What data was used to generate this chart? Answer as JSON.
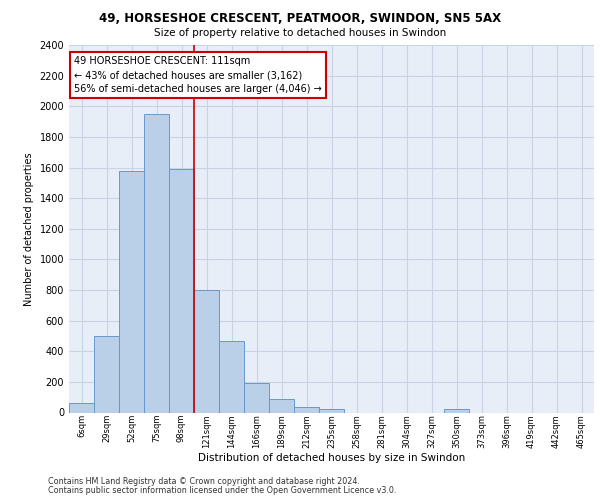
{
  "title1": "49, HORSESHOE CRESCENT, PEATMOOR, SWINDON, SN5 5AX",
  "title2": "Size of property relative to detached houses in Swindon",
  "xlabel": "Distribution of detached houses by size in Swindon",
  "ylabel": "Number of detached properties",
  "categories": [
    "6sqm",
    "29sqm",
    "52sqm",
    "75sqm",
    "98sqm",
    "121sqm",
    "144sqm",
    "166sqm",
    "189sqm",
    "212sqm",
    "235sqm",
    "258sqm",
    "281sqm",
    "304sqm",
    "327sqm",
    "350sqm",
    "373sqm",
    "396sqm",
    "419sqm",
    "442sqm",
    "465sqm"
  ],
  "bar_values": [
    60,
    500,
    1580,
    1950,
    1590,
    800,
    470,
    195,
    90,
    35,
    25,
    0,
    0,
    0,
    0,
    20,
    0,
    0,
    0,
    0,
    0
  ],
  "bar_color": "#bad0e8",
  "bar_edge_color": "#6699cc",
  "vline_index": 4.5,
  "annotation_text": "49 HORSESHOE CRESCENT: 111sqm\n← 43% of detached houses are smaller (3,162)\n56% of semi-detached houses are larger (4,046) →",
  "annotation_box_color": "#ffffff",
  "annotation_box_edge": "#cc0000",
  "vline_color": "#cc0000",
  "ylim": [
    0,
    2400
  ],
  "yticks": [
    0,
    200,
    400,
    600,
    800,
    1000,
    1200,
    1400,
    1600,
    1800,
    2000,
    2200,
    2400
  ],
  "grid_color": "#c8d4e4",
  "bg_color": "#e8eef8",
  "footer1": "Contains HM Land Registry data © Crown copyright and database right 2024.",
  "footer2": "Contains public sector information licensed under the Open Government Licence v3.0."
}
